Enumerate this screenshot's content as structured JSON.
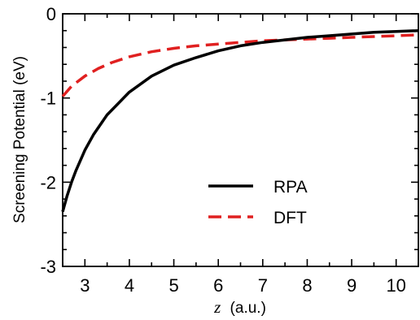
{
  "chart_data": {
    "type": "line",
    "title": "",
    "xlabel": "z",
    "xlabel_unit": "(a.u.)",
    "ylabel": "Screening Potential (eV)",
    "xlim": [
      2.5,
      10.5
    ],
    "ylim": [
      -3,
      0
    ],
    "x_ticks": [
      "3",
      "4",
      "5",
      "6",
      "7",
      "8",
      "9",
      "10"
    ],
    "y_ticks": [
      "0",
      "-1",
      "-2",
      "-3"
    ],
    "grid": false,
    "legend_position": "lower-right",
    "series": [
      {
        "name": "RPA",
        "color": "#000000",
        "dash": "solid",
        "x": [
          2.5,
          2.6,
          2.7,
          2.8,
          3.0,
          3.2,
          3.5,
          4.0,
          4.5,
          5.0,
          5.5,
          6.0,
          6.5,
          7.0,
          7.5,
          8.0,
          8.5,
          9.0,
          9.5,
          10.0,
          10.5
        ],
        "y": [
          -2.35,
          -2.16,
          -2.0,
          -1.86,
          -1.62,
          -1.43,
          -1.2,
          -0.93,
          -0.74,
          -0.61,
          -0.52,
          -0.44,
          -0.38,
          -0.34,
          -0.31,
          -0.28,
          -0.26,
          -0.24,
          -0.22,
          -0.21,
          -0.2
        ]
      },
      {
        "name": "DFT",
        "color": "#e02020",
        "dash": "dashed",
        "x": [
          2.5,
          2.7,
          3.0,
          3.3,
          3.6,
          4.0,
          4.5,
          5.0,
          5.5,
          6.0,
          6.5,
          7.0,
          7.5,
          8.0,
          8.5,
          9.0,
          9.5,
          10.0,
          10.5
        ],
        "y": [
          -0.98,
          -0.86,
          -0.74,
          -0.65,
          -0.58,
          -0.51,
          -0.45,
          -0.41,
          -0.38,
          -0.36,
          -0.34,
          -0.32,
          -0.31,
          -0.3,
          -0.29,
          -0.28,
          -0.27,
          -0.26,
          -0.25
        ]
      }
    ]
  }
}
